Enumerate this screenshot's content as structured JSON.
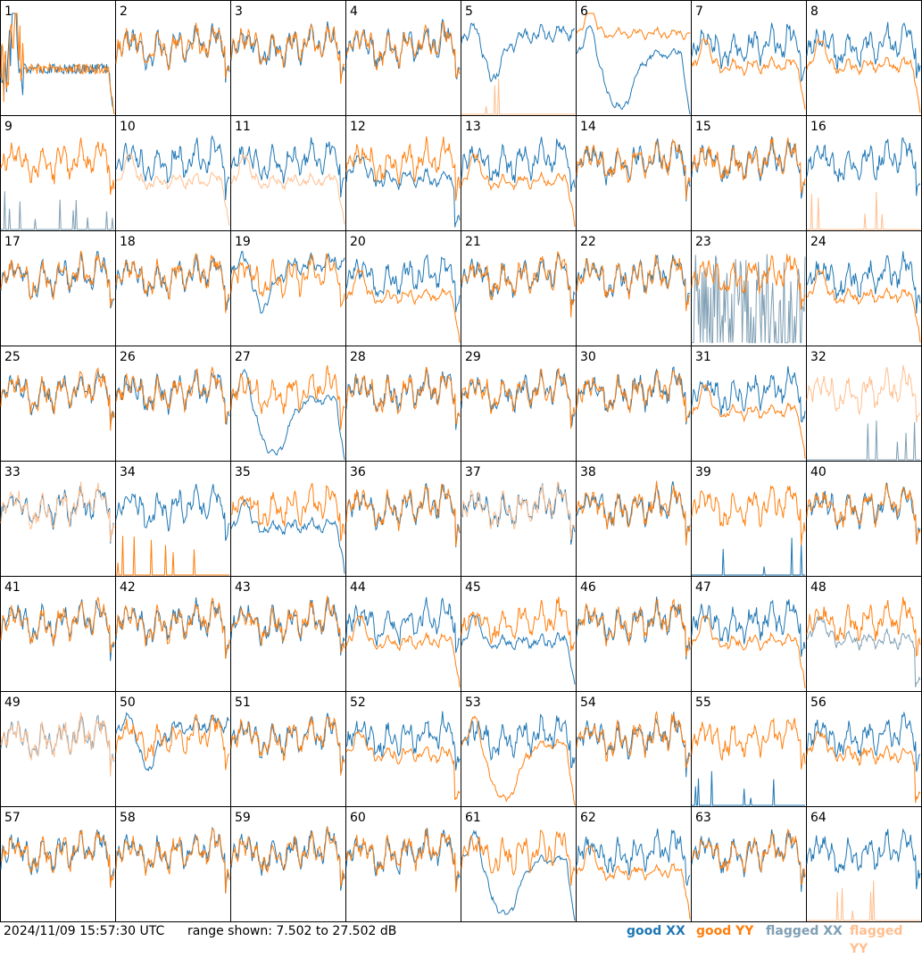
{
  "chart_data": {
    "type": "line",
    "title": "",
    "xlabel": "",
    "ylabel": "",
    "grid": {
      "rows": 8,
      "cols": 8
    },
    "ylim": [
      7.502,
      27.502
    ],
    "units": "dB",
    "colors": {
      "good_xx": "#1f77b4",
      "good_yy": "#ff7f0e",
      "flagged_xx": "#7f9fb4",
      "flagged_yy": "#ffbf8f"
    },
    "legend": {
      "position": "bottom-right",
      "entries": [
        "good XX",
        "good YY",
        "flagged XX",
        "flagged YY"
      ]
    },
    "tiles": [
      {
        "label": "1",
        "xx": "weird",
        "yy": "weird",
        "xxFlag": false,
        "yyFlag": false
      },
      {
        "label": "2",
        "xx": "normal",
        "yy": "normal",
        "xxFlag": false,
        "yyFlag": false
      },
      {
        "label": "3",
        "xx": "normal",
        "yy": "normal",
        "xxFlag": false,
        "yyFlag": false
      },
      {
        "label": "4",
        "xx": "normal",
        "yy": "normal",
        "xxFlag": false,
        "yyFlag": false
      },
      {
        "label": "5",
        "xx": "dip",
        "yy": "dead",
        "xxFlag": false,
        "yyFlag": true
      },
      {
        "label": "6",
        "xx": "deepdip",
        "yy": "high",
        "xxFlag": false,
        "yyFlag": false
      },
      {
        "label": "7",
        "xx": "normal",
        "yy": "low",
        "xxFlag": false,
        "yyFlag": false
      },
      {
        "label": "8",
        "xx": "normal",
        "yy": "low",
        "xxFlag": false,
        "yyFlag": false
      },
      {
        "label": "9",
        "xx": "dead",
        "yy": "normal",
        "xxFlag": true,
        "yyFlag": false
      },
      {
        "label": "10",
        "xx": "normal",
        "yy": "low",
        "xxFlag": false,
        "yyFlag": true
      },
      {
        "label": "11",
        "xx": "normal",
        "yy": "low",
        "xxFlag": false,
        "yyFlag": true
      },
      {
        "label": "12",
        "xx": "mid",
        "yy": "normal",
        "xxFlag": false,
        "yyFlag": false
      },
      {
        "label": "13",
        "xx": "normal",
        "yy": "low",
        "xxFlag": false,
        "yyFlag": false
      },
      {
        "label": "14",
        "xx": "normal",
        "yy": "normal",
        "xxFlag": false,
        "yyFlag": false
      },
      {
        "label": "15",
        "xx": "normal",
        "yy": "normal",
        "xxFlag": false,
        "yyFlag": false
      },
      {
        "label": "16",
        "xx": "normal",
        "yy": "dead",
        "xxFlag": false,
        "yyFlag": true
      },
      {
        "label": "17",
        "xx": "normal",
        "yy": "normal",
        "xxFlag": false,
        "yyFlag": false
      },
      {
        "label": "18",
        "xx": "normal",
        "yy": "normal",
        "xxFlag": false,
        "yyFlag": false
      },
      {
        "label": "19",
        "xx": "dip",
        "yy": "normal",
        "xxFlag": false,
        "yyFlag": false
      },
      {
        "label": "20",
        "xx": "normal",
        "yy": "low",
        "xxFlag": false,
        "yyFlag": false
      },
      {
        "label": "21",
        "xx": "normal",
        "yy": "normal",
        "xxFlag": false,
        "yyFlag": false
      },
      {
        "label": "22",
        "xx": "normal",
        "yy": "normal",
        "xxFlag": false,
        "yyFlag": false
      },
      {
        "label": "23",
        "xx": "noise",
        "yy": "normal",
        "xxFlag": true,
        "yyFlag": false
      },
      {
        "label": "24",
        "xx": "normal",
        "yy": "low",
        "xxFlag": false,
        "yyFlag": false
      },
      {
        "label": "25",
        "xx": "normal",
        "yy": "normal",
        "xxFlag": false,
        "yyFlag": false
      },
      {
        "label": "26",
        "xx": "normal",
        "yy": "normal",
        "xxFlag": false,
        "yyFlag": false
      },
      {
        "label": "27",
        "xx": "deepdip",
        "yy": "normal",
        "xxFlag": false,
        "yyFlag": false
      },
      {
        "label": "28",
        "xx": "normal",
        "yy": "normal",
        "xxFlag": false,
        "yyFlag": false
      },
      {
        "label": "29",
        "xx": "normal",
        "yy": "normal",
        "xxFlag": false,
        "yyFlag": false
      },
      {
        "label": "30",
        "xx": "normal",
        "yy": "normal",
        "xxFlag": false,
        "yyFlag": false
      },
      {
        "label": "31",
        "xx": "normal",
        "yy": "low",
        "xxFlag": false,
        "yyFlag": false
      },
      {
        "label": "32",
        "xx": "dead",
        "yy": "normal",
        "xxFlag": true,
        "yyFlag": true
      },
      {
        "label": "33",
        "xx": "normal",
        "yy": "normal",
        "xxFlag": false,
        "yyFlag": true
      },
      {
        "label": "34",
        "xx": "normal",
        "yy": "dead",
        "xxFlag": false,
        "yyFlag": false
      },
      {
        "label": "35",
        "xx": "low",
        "yy": "normal",
        "xxFlag": false,
        "yyFlag": false
      },
      {
        "label": "36",
        "xx": "normal",
        "yy": "normal",
        "xxFlag": false,
        "yyFlag": false
      },
      {
        "label": "37",
        "xx": "normal",
        "yy": "normal",
        "xxFlag": false,
        "yyFlag": true
      },
      {
        "label": "38",
        "xx": "normal",
        "yy": "normal",
        "xxFlag": false,
        "yyFlag": false
      },
      {
        "label": "39",
        "xx": "dead",
        "yy": "normal",
        "xxFlag": false,
        "yyFlag": false
      },
      {
        "label": "40",
        "xx": "normal",
        "yy": "normal",
        "xxFlag": false,
        "yyFlag": false
      },
      {
        "label": "41",
        "xx": "normal",
        "yy": "normal",
        "xxFlag": false,
        "yyFlag": false
      },
      {
        "label": "42",
        "xx": "normal",
        "yy": "normal",
        "xxFlag": false,
        "yyFlag": false
      },
      {
        "label": "43",
        "xx": "normal",
        "yy": "normal",
        "xxFlag": false,
        "yyFlag": false
      },
      {
        "label": "44",
        "xx": "normal",
        "yy": "low",
        "xxFlag": false,
        "yyFlag": false
      },
      {
        "label": "45",
        "xx": "low",
        "yy": "normal",
        "xxFlag": false,
        "yyFlag": false
      },
      {
        "label": "46",
        "xx": "normal",
        "yy": "normal",
        "xxFlag": false,
        "yyFlag": false
      },
      {
        "label": "47",
        "xx": "normal",
        "yy": "low",
        "xxFlag": false,
        "yyFlag": false
      },
      {
        "label": "48",
        "xx": "mid",
        "yy": "normal",
        "xxFlag": true,
        "yyFlag": false
      },
      {
        "label": "49",
        "xx": "normal",
        "yy": "normal",
        "xxFlag": true,
        "yyFlag": true
      },
      {
        "label": "50",
        "xx": "dip",
        "yy": "normal",
        "xxFlag": false,
        "yyFlag": false
      },
      {
        "label": "51",
        "xx": "normal",
        "yy": "normal",
        "xxFlag": false,
        "yyFlag": false
      },
      {
        "label": "52",
        "xx": "normal",
        "yy": "mid",
        "xxFlag": false,
        "yyFlag": false
      },
      {
        "label": "53",
        "xx": "normal",
        "yy": "deepdip",
        "xxFlag": false,
        "yyFlag": false
      },
      {
        "label": "54",
        "xx": "normal",
        "yy": "normal",
        "xxFlag": false,
        "yyFlag": false
      },
      {
        "label": "55",
        "xx": "dead",
        "yy": "normal",
        "xxFlag": false,
        "yyFlag": false
      },
      {
        "label": "56",
        "xx": "normal",
        "yy": "mid",
        "xxFlag": false,
        "yyFlag": false
      },
      {
        "label": "57",
        "xx": "normal",
        "yy": "normal",
        "xxFlag": false,
        "yyFlag": false
      },
      {
        "label": "58",
        "xx": "normal",
        "yy": "normal",
        "xxFlag": false,
        "yyFlag": false
      },
      {
        "label": "59",
        "xx": "normal",
        "yy": "normal",
        "xxFlag": false,
        "yyFlag": false
      },
      {
        "label": "60",
        "xx": "normal",
        "yy": "normal",
        "xxFlag": false,
        "yyFlag": false
      },
      {
        "label": "61",
        "xx": "deepdip",
        "yy": "normal",
        "xxFlag": false,
        "yyFlag": false
      },
      {
        "label": "62",
        "xx": "normal",
        "yy": "low",
        "xxFlag": false,
        "yyFlag": false
      },
      {
        "label": "63",
        "xx": "normal",
        "yy": "normal",
        "xxFlag": false,
        "yyFlag": false
      },
      {
        "label": "64",
        "xx": "normal",
        "yy": "dead",
        "xxFlag": false,
        "yyFlag": true
      }
    ]
  },
  "footer": {
    "timestamp": "2024/11/09 15:57:30 UTC",
    "range": "range shown: 7.502 to 27.502 dB",
    "legend": [
      "good XX",
      "good YY",
      "flagged XX",
      "flagged YY"
    ]
  }
}
